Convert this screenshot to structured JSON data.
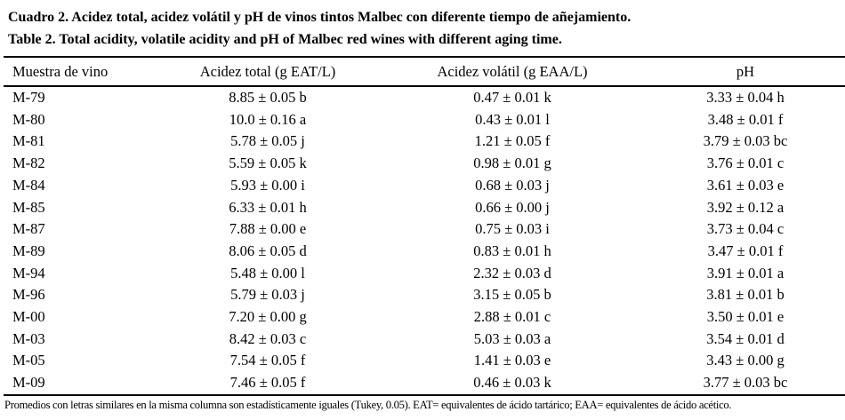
{
  "caption": {
    "spanish": "Cuadro 2. Acidez total, acidez volátil y pH de vinos tintos Malbec con diferente tiempo de añejamiento.",
    "english": "Table 2. Total acidity, volatile acidity and pH of Malbec red wines with different aging time."
  },
  "table": {
    "columns": [
      "Muestra de vino",
      "Acidez total (g EAT/L)",
      "Acidez volátil (g EAA/L)",
      "pH"
    ],
    "rows": [
      {
        "sample": "M-79",
        "total_acidity": "8.85 ± 0.05 b",
        "volatile_acidity": "0.47 ± 0.01 k",
        "ph": "3.33 ± 0.04 h"
      },
      {
        "sample": "M-80",
        "total_acidity": "10.0 ± 0.16 a",
        "volatile_acidity": "0.43 ± 0.01 l",
        "ph": "3.48 ± 0.01 f"
      },
      {
        "sample": "M-81",
        "total_acidity": "5.78 ± 0.05 j",
        "volatile_acidity": "1.21 ± 0.05 f",
        "ph": "3.79 ± 0.03 bc"
      },
      {
        "sample": "M-82",
        "total_acidity": "5.59 ± 0.05 k",
        "volatile_acidity": "0.98 ± 0.01 g",
        "ph": "3.76 ± 0.01 c"
      },
      {
        "sample": "M-84",
        "total_acidity": "5.93 ± 0.00 i",
        "volatile_acidity": "0.68 ± 0.03 j",
        "ph": "3.61 ± 0.03 e"
      },
      {
        "sample": "M-85",
        "total_acidity": "6.33 ± 0.01 h",
        "volatile_acidity": "0.66 ± 0.00 j",
        "ph": "3.92 ± 0.12 a"
      },
      {
        "sample": "M-87",
        "total_acidity": "7.88 ± 0.00 e",
        "volatile_acidity": "0.75 ± 0.03 i",
        "ph": "3.73 ± 0.04 c"
      },
      {
        "sample": "M-89",
        "total_acidity": "8.06 ± 0.05 d",
        "volatile_acidity": "0.83 ± 0.01 h",
        "ph": "3.47 ± 0.01 f"
      },
      {
        "sample": "M-94",
        "total_acidity": "5.48 ± 0.00 l",
        "volatile_acidity": "2.32 ± 0.03 d",
        "ph": "3.91 ± 0.01 a"
      },
      {
        "sample": "M-96",
        "total_acidity": "5.79 ± 0.03 j",
        "volatile_acidity": "3.15 ± 0.05 b",
        "ph": "3.81 ± 0.01 b"
      },
      {
        "sample": "M-00",
        "total_acidity": "7.20 ± 0.00 g",
        "volatile_acidity": "2.88 ± 0.01 c",
        "ph": "3.50 ± 0.01 e"
      },
      {
        "sample": "M-03",
        "total_acidity": "8.42 ± 0.03 c",
        "volatile_acidity": "5.03 ± 0.03 a",
        "ph": "3.54 ± 0.01 d"
      },
      {
        "sample": "M-05",
        "total_acidity": "7.54 ± 0.05 f",
        "volatile_acidity": "1.41 ± 0.03 e",
        "ph": "3.43 ± 0.00 g"
      },
      {
        "sample": "M-09",
        "total_acidity": "7.46 ± 0.05 f",
        "volatile_acidity": "0.46 ± 0.03 k",
        "ph": "3.77 ± 0.03 bc"
      }
    ]
  },
  "footnote": "Promedios con letras similares en la misma columna son estadísticamente iguales (Tukey, 0.05). EAT= equivalentes de ácido tartárico; EAA= equivalentes de ácido acético."
}
